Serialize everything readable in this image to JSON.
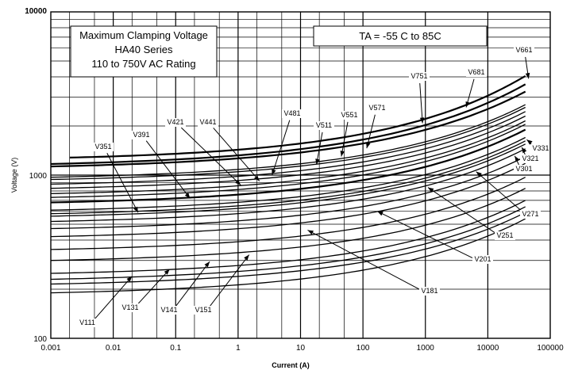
{
  "chart_data": {
    "type": "line",
    "xscale": "log",
    "yscale": "log",
    "xlim": [
      0.001,
      100000
    ],
    "ylim": [
      100,
      10000
    ],
    "xlabel": "Current (A)",
    "ylabel": "Voltage (V)",
    "x_ticks": [
      "0.001",
      "0.01",
      "0.1",
      "1",
      "10",
      "100",
      "1000",
      "10000",
      "100000"
    ],
    "y_ticks": [
      "100",
      "1000",
      "10000"
    ],
    "title_lines": [
      "Maximum Clamping Voltage",
      "HA40  Series",
      "110 to 750V AC Rating"
    ],
    "condition": "TA = -55 C to 85C",
    "grid": true,
    "series": [
      {
        "name": "V111",
        "x_start": 0.001,
        "v_start": 190,
        "v_end": 540
      },
      {
        "name": "V131",
        "x_start": 0.001,
        "v_start": 215,
        "v_end": 590
      },
      {
        "name": "V141",
        "x_start": 0.001,
        "v_start": 230,
        "v_end": 640
      },
      {
        "name": "V151",
        "x_start": 0.001,
        "v_start": 250,
        "v_end": 700
      },
      {
        "name": "V181",
        "x_start": 0.001,
        "v_start": 300,
        "v_end": 830
      },
      {
        "name": "V201",
        "x_start": 0.001,
        "v_start": 350,
        "v_end": 970
      },
      {
        "name": "V251",
        "x_start": 0.001,
        "v_start": 420,
        "v_end": 1180
      },
      {
        "name": "V271",
        "x_start": 0.001,
        "v_start": 470,
        "v_end": 1300
      },
      {
        "name": "V301",
        "x_start": 0.001,
        "v_start": 520,
        "v_end": 1450
      },
      {
        "name": "V321",
        "x_start": 0.001,
        "v_start": 560,
        "v_end": 1550
      },
      {
        "name": "V331",
        "x_start": 0.001,
        "v_start": 580,
        "v_end": 1620
      },
      {
        "name": "V351",
        "x_start": 0.001,
        "v_start": 610,
        "v_end": 1700
      },
      {
        "name": "V391",
        "x_start": 0.001,
        "v_start": 680,
        "v_end": 1900
      },
      {
        "name": "V421",
        "x_start": 0.001,
        "v_start": 730,
        "v_end": 2050
      },
      {
        "name": "V441",
        "x_start": 0.001,
        "v_start": 770,
        "v_end": 2150
      },
      {
        "name": "V481",
        "x_start": 0.001,
        "v_start": 830,
        "v_end": 2300
      },
      {
        "name": "V511",
        "x_start": 0.001,
        "v_start": 880,
        "v_end": 2450
      },
      {
        "name": "V551",
        "x_start": 0.001,
        "v_start": 940,
        "v_end": 2600
      },
      {
        "name": "V571",
        "x_start": 0.001,
        "v_start": 970,
        "v_end": 2700
      },
      {
        "name": "V661",
        "x_start": 0.001,
        "v_start": 1130,
        "v_end": 3250
      },
      {
        "name": "V681",
        "x_start": 0.001,
        "v_start": 1170,
        "v_end": 3600
      },
      {
        "name": "V751",
        "x_start": 0.002,
        "v_start": 1280,
        "v_end": 4050
      }
    ],
    "labels": [
      {
        "name": "V661",
        "x": 45000,
        "y": 3900,
        "tx": 660,
        "ty": 66
      },
      {
        "name": "V681",
        "x": 4500,
        "y": 2600,
        "tx": 600,
        "ty": 94
      },
      {
        "name": "V751",
        "x": 900,
        "y": 2080,
        "tx": 528,
        "ty": 99
      },
      {
        "name": "V571",
        "x": 115,
        "y": 1460,
        "tx": 475,
        "ty": 139
      },
      {
        "name": "V551",
        "x": 45,
        "y": 1300,
        "tx": 440,
        "ty": 148
      },
      {
        "name": "V511",
        "x": 18,
        "y": 1160,
        "tx": 408,
        "ty": 161
      },
      {
        "name": "V481",
        "x": 3.5,
        "y": 1000,
        "tx": 368,
        "ty": 146
      },
      {
        "name": "V441",
        "x": 2.2,
        "y": 920,
        "tx": 262,
        "ty": 157
      },
      {
        "name": "V421",
        "x": 1.1,
        "y": 870,
        "tx": 221,
        "ty": 157
      },
      {
        "name": "V391",
        "x": 0.17,
        "y": 720,
        "tx": 178,
        "ty": 173
      },
      {
        "name": "V351",
        "x": 0.025,
        "y": 590,
        "tx": 130,
        "ty": 188
      },
      {
        "name": "V331",
        "x": 42000,
        "y": 1650,
        "tx": 681,
        "ty": 190
      },
      {
        "name": "V321",
        "x": 35000,
        "y": 1480,
        "tx": 668,
        "ty": 203
      },
      {
        "name": "V301",
        "x": 27000,
        "y": 1310,
        "tx": 660,
        "ty": 216
      },
      {
        "name": "V271",
        "x": 6500,
        "y": 1050,
        "tx": 668,
        "ty": 273
      },
      {
        "name": "V251",
        "x": 1100,
        "y": 840,
        "tx": 636,
        "ty": 300
      },
      {
        "name": "V201",
        "x": 170,
        "y": 600,
        "tx": 608,
        "ty": 330
      },
      {
        "name": "V181",
        "x": 13,
        "y": 460,
        "tx": 541,
        "ty": 370
      },
      {
        "name": "V151",
        "x": 1.5,
        "y": 325,
        "tx": 256,
        "ty": 394
      },
      {
        "name": "V141",
        "x": 0.35,
        "y": 295,
        "tx": 213,
        "ty": 394
      },
      {
        "name": "V131",
        "x": 0.08,
        "y": 265,
        "tx": 164,
        "ty": 391
      },
      {
        "name": "V111",
        "x": 0.02,
        "y": 240,
        "tx": 110,
        "ty": 410
      }
    ]
  }
}
